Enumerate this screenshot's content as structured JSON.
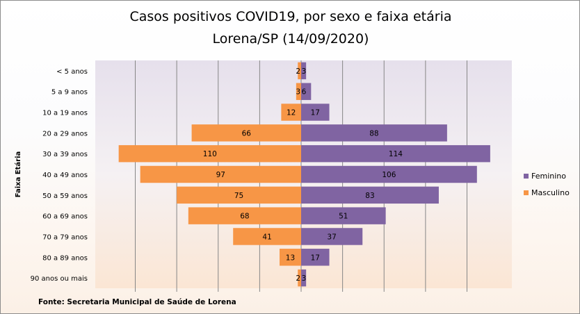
{
  "title_line1": "Casos positivos COVID19, por sexo e faixa etária",
  "title_line2": "Lorena/SP (14/09/2020)",
  "source": "Fonte: Secretaria Municipal  de Saúde de Lorena",
  "colors": {
    "feminino": "#8064a2",
    "masculino": "#f79646",
    "grid": "#868686"
  },
  "chart_data": {
    "type": "bar",
    "orientation": "horizontal",
    "layout": "population-pyramid",
    "ylabel": "Faixa Etária",
    "xlabel": "",
    "categories": [
      "< 5 anos",
      "5 a 9 anos",
      "10 a 19 anos",
      "20 a 29 anos",
      "30 a 39 anos",
      "40 a 49 anos",
      "50 a 59 anos",
      "60 a 69 anos",
      "70 a 79 anos",
      "80 a 89 anos",
      "90 anos ou mais"
    ],
    "series": [
      {
        "name": "Feminino",
        "side": "right",
        "values": [
          3,
          6,
          17,
          88,
          114,
          106,
          83,
          51,
          37,
          17,
          3
        ]
      },
      {
        "name": "Masculino",
        "side": "left",
        "values": [
          2,
          3,
          12,
          66,
          110,
          97,
          75,
          68,
          41,
          13,
          2
        ]
      }
    ],
    "xlim": [
      -125,
      125
    ],
    "grid": "vertical",
    "legend": "right"
  }
}
